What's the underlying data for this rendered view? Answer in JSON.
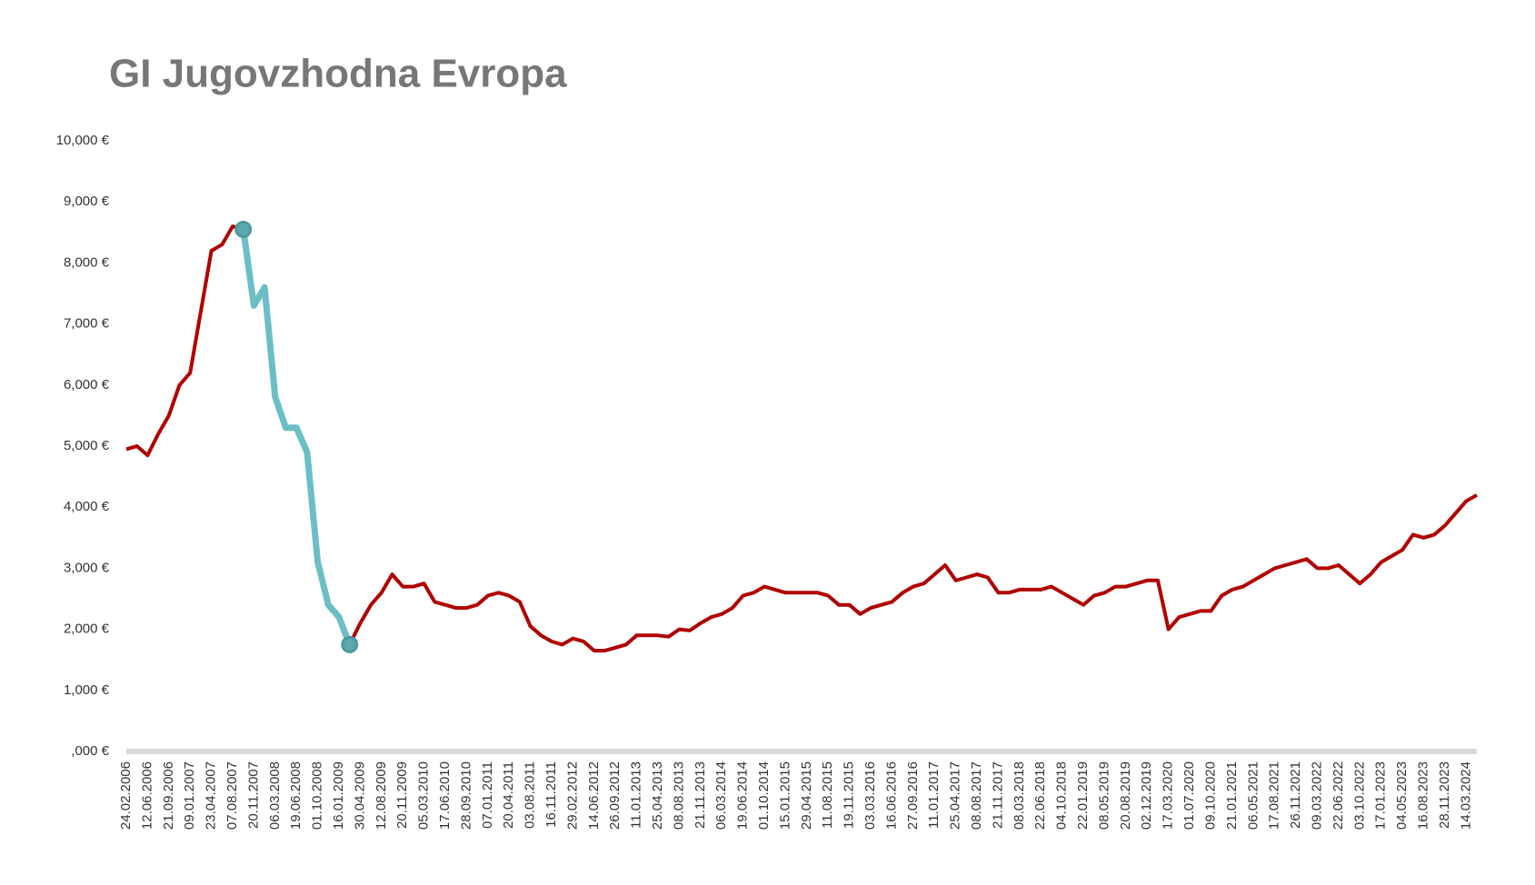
{
  "chart_data": {
    "type": "line",
    "title": "GI Jugovzhodna Evropa",
    "categories": [
      "24.02.2006",
      null,
      "12.06.2006",
      null,
      "21.09.2006",
      null,
      "09.01.2007",
      null,
      "23.04.2007",
      null,
      "07.08.2007",
      null,
      "20.11.2007",
      null,
      "06.03.2008",
      null,
      "19.06.2008",
      null,
      "01.10.2008",
      null,
      "16.01.2009",
      null,
      "30.04.2009",
      null,
      "12.08.2009",
      null,
      "20.11.2009",
      null,
      "05.03.2010",
      null,
      "17.06.2010",
      null,
      "28.09.2010",
      null,
      "07.01.2011",
      null,
      "20.04.2011",
      null,
      "03.08.2011",
      null,
      "16.11.2011",
      null,
      "29.02.2012",
      null,
      "14.06.2012",
      null,
      "26.09.2012",
      null,
      "11.01.2013",
      null,
      "25.04.2013",
      null,
      "08.08.2013",
      null,
      "21.11.2013",
      null,
      "06.03.2014",
      null,
      "19.06.2014",
      null,
      "01.10.2014",
      null,
      "15.01.2015",
      null,
      "29.04.2015",
      null,
      "11.08.2015",
      null,
      "19.11.2015",
      null,
      "03.03.2016",
      null,
      "16.06.2016",
      null,
      "27.09.2016",
      null,
      "11.01.2017",
      null,
      "25.04.2017",
      null,
      "08.08.2017",
      null,
      "21.11.2017",
      null,
      "08.03.2018",
      null,
      "22.06.2018",
      null,
      "04.10.2018",
      null,
      "22.01.2019",
      null,
      "08.05.2019",
      null,
      "20.08.2019",
      null,
      "02.12.2019",
      null,
      "17.03.2020",
      null,
      "01.07.2020",
      null,
      "09.10.2020",
      null,
      "21.01.2021",
      null,
      "06.05.2021",
      null,
      "17.08.2021",
      null,
      "26.11.2021",
      null,
      "09.03.2022",
      null,
      "22.06.2022",
      null,
      "03.10.2022",
      null,
      "17.01.2023",
      null,
      "04.05.2023",
      null,
      "16.08.2023",
      null,
      "28.11.2023",
      null,
      "14.03.2024",
      null
    ],
    "series": [
      {
        "color": "#b00000",
        "values": [
          4950,
          5000,
          4850,
          5200,
          5500,
          6000,
          6200,
          7200,
          8200,
          8300,
          8600,
          8550,
          7300,
          7600,
          5800,
          5300,
          5300,
          4900,
          3100,
          2400,
          2200,
          1750,
          2100,
          2400,
          2600,
          2900,
          2700,
          2700,
          2750,
          2450,
          2400,
          2350,
          2350,
          2400,
          2550,
          2600,
          2550,
          2450,
          2050,
          1900,
          1800,
          1750,
          1850,
          1800,
          1650,
          1650,
          1700,
          1750,
          1900,
          1900,
          1900,
          1880,
          2000,
          1980,
          2100,
          2200,
          2250,
          2350,
          2550,
          2600,
          2700,
          2650,
          2600,
          2600,
          2600,
          2600,
          2550,
          2400,
          2400,
          2250,
          2350,
          2400,
          2450,
          2600,
          2700,
          2750,
          2900,
          3050,
          2800,
          2850,
          2900,
          2850,
          2600,
          2600,
          2650,
          2650,
          2650,
          2700,
          2600,
          2500,
          2400,
          2550,
          2600,
          2700,
          2700,
          2750,
          2800,
          2800,
          2000,
          2200,
          2250,
          2300,
          2300,
          2550,
          2650,
          2700,
          2800,
          2900,
          3000,
          3050,
          3100,
          3150,
          3000,
          3000,
          3050,
          2900,
          2750,
          2900,
          3100,
          3200,
          3300,
          3550,
          3500,
          3550,
          3700,
          3900,
          4100,
          4200
        ]
      },
      {
        "color": "#6bbfc4",
        "values": [
          null,
          null,
          null,
          null,
          null,
          null,
          null,
          null,
          null,
          null,
          null,
          8550,
          7300,
          7600,
          5800,
          5300,
          5300,
          4900,
          3100,
          2400,
          2200,
          1750,
          null,
          null,
          null,
          null,
          null,
          null,
          null,
          null,
          null,
          null,
          null,
          null,
          null,
          null,
          null,
          null,
          null,
          null,
          null,
          null,
          null,
          null,
          null,
          null,
          null,
          null,
          null,
          null,
          null,
          null,
          null,
          null,
          null,
          null,
          null,
          null,
          null,
          null,
          null,
          null,
          null,
          null,
          null,
          null,
          null,
          null,
          null,
          null,
          null,
          null,
          null,
          null,
          null,
          null,
          null,
          null,
          null,
          null,
          null,
          null,
          null,
          null,
          null,
          null,
          null,
          null,
          null,
          null,
          null,
          null,
          null,
          null,
          null,
          null,
          null,
          null,
          null,
          null,
          null,
          null,
          null,
          null,
          null,
          null,
          null,
          null,
          null,
          null,
          null,
          null,
          null,
          null,
          null,
          null,
          null,
          null,
          null,
          null,
          null,
          null,
          null,
          null,
          null,
          null,
          null,
          null
        ]
      }
    ],
    "ylim": [
      0,
      10000
    ],
    "yticks": [
      {
        "value": 0,
        "label": ",000 €"
      },
      {
        "value": 1000,
        "label": "1,000 €"
      },
      {
        "value": 2000,
        "label": "2,000 €"
      },
      {
        "value": 3000,
        "label": "3,000 €"
      },
      {
        "value": 4000,
        "label": "4,000 €"
      },
      {
        "value": 5000,
        "label": "5,000 €"
      },
      {
        "value": 6000,
        "label": "6,000 €"
      },
      {
        "value": 7000,
        "label": "7,000 €"
      },
      {
        "value": 8000,
        "label": "8,000 €"
      },
      {
        "value": 9000,
        "label": "9,000 €"
      },
      {
        "value": 10000,
        "label": "10,000 €"
      }
    ],
    "grid": false
  }
}
